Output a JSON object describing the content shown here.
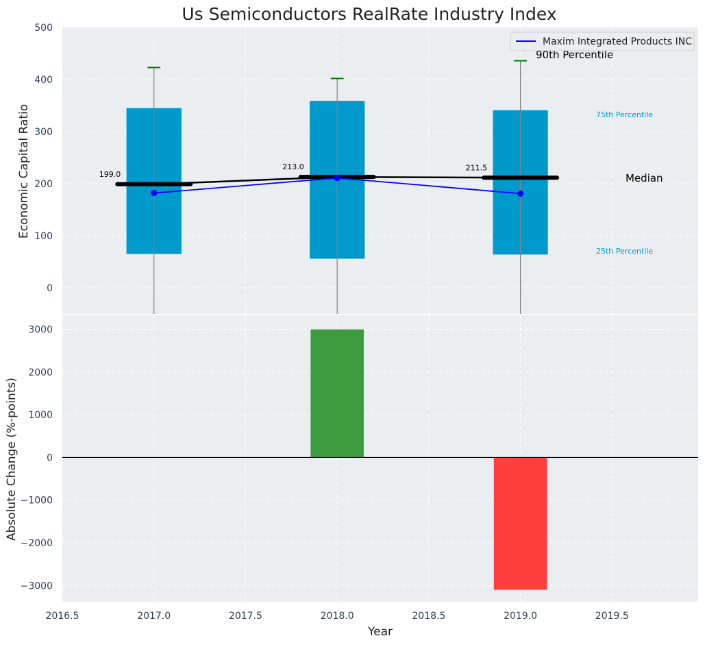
{
  "chart_data": [
    {
      "type": "bar",
      "title": "Us Semiconductors RealRate Industry Index",
      "xlabel": "",
      "ylabel": "Economic Capital Ratio",
      "ylim": [
        -50,
        500
      ],
      "xlim": [
        2016.5,
        2019.97
      ],
      "yticks": [
        0,
        100,
        200,
        300,
        400,
        500
      ],
      "grid": true,
      "legend_position": "top-right",
      "x": [
        2017,
        2018,
        2019
      ],
      "percentile_25": [
        65,
        56,
        64
      ],
      "percentile_75": [
        345,
        359,
        341
      ],
      "percentile_90": [
        423,
        402,
        436
      ],
      "median": [
        199.0,
        213.0,
        211.5
      ],
      "median_labels": [
        "199.0",
        "213.0",
        "211.5"
      ],
      "series": [
        {
          "name": "Maxim Integrated Products INC",
          "values": [
            182,
            211,
            181
          ]
        }
      ],
      "annotations": {
        "p90": "90th Percentile",
        "p75": "75th Percentile",
        "median": "Median",
        "p25": "25th Percentile"
      },
      "colors": {
        "box": "#0099cc",
        "whisker_cap": "#008000",
        "median": "#000000",
        "company_line": "#0000ff",
        "background": "#eaeef0"
      }
    },
    {
      "type": "bar",
      "title": "",
      "xlabel": "Year",
      "ylabel": "Absolute Change (%-points)",
      "ylim": [
        -3380,
        3330
      ],
      "xlim": [
        2016.5,
        2019.97
      ],
      "yticks": [
        -3000,
        -2000,
        -1000,
        0,
        1000,
        2000,
        3000
      ],
      "ytick_labels": [
        "−3000",
        "−2000",
        "−1000",
        "0",
        "1000",
        "2000",
        "3000"
      ],
      "xticks": [
        2016.5,
        2017.0,
        2017.5,
        2018.0,
        2018.5,
        2019.0,
        2019.5
      ],
      "xtick_labels": [
        "2016.5",
        "2017.0",
        "2017.5",
        "2018.0",
        "2018.5",
        "2019.0",
        "2019.5"
      ],
      "grid": true,
      "x": [
        2018,
        2019
      ],
      "values": [
        3000,
        -3100
      ],
      "colors": {
        "positive": "#3d9c3d",
        "negative": "#ff3e3e",
        "zero_line": "#000000",
        "background": "#eaeef0"
      }
    }
  ]
}
